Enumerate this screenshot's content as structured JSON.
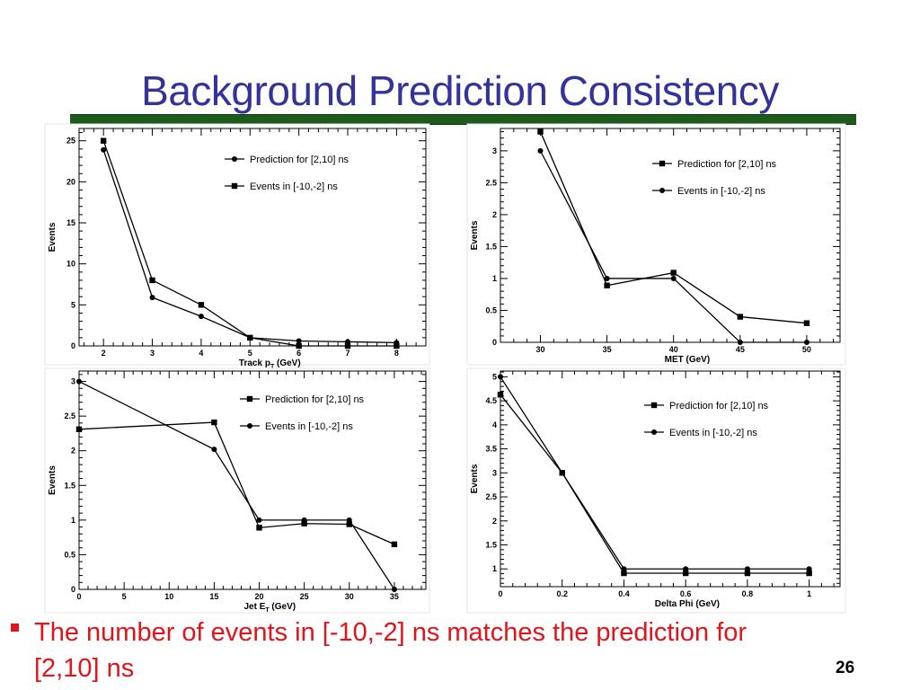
{
  "slide": {
    "title": "Background Prediction Consistency",
    "bullet": "The number of events in [-10,-2] ns matches the prediction for [2,10] ns",
    "page_number": "26",
    "colors": {
      "title": "#333399",
      "bar": "#1e5a1e",
      "bullet": "#e0141b"
    }
  },
  "chart_data": [
    {
      "type": "line",
      "xlabel": "Track p_T (GeV)",
      "ylabel": "Events",
      "xlim": [
        1.5,
        8.6
      ],
      "ylim": [
        0,
        26.5
      ],
      "xticks": [
        2,
        3,
        4,
        5,
        6,
        7,
        8
      ],
      "yticks": [
        0,
        5,
        10,
        15,
        20,
        25
      ],
      "legend_position": "top-right",
      "series": [
        {
          "name": "Prediction for [2,10] ns",
          "marker": "circle",
          "x": [
            2,
            3,
            4,
            5,
            6,
            7,
            8
          ],
          "y": [
            23.9,
            5.9,
            3.6,
            1.0,
            0.6,
            0.5,
            0.4
          ]
        },
        {
          "name": "Events in [-10,-2] ns",
          "marker": "square",
          "x": [
            2,
            3,
            4,
            5,
            6,
            7,
            8
          ],
          "y": [
            25,
            8,
            5,
            1,
            0,
            0,
            0
          ]
        }
      ]
    },
    {
      "type": "line",
      "xlabel": "MET (GeV)",
      "ylabel": "Events",
      "xlim": [
        27,
        52.5
      ],
      "ylim": [
        0,
        3.35
      ],
      "xticks": [
        30,
        35,
        40,
        45,
        50
      ],
      "yticks": [
        0,
        0.5,
        1,
        1.5,
        2,
        2.5,
        3
      ],
      "legend_position": "top-right",
      "series": [
        {
          "name": "Prediction for [2,10] ns",
          "marker": "square",
          "x": [
            30,
            35,
            40,
            45,
            50
          ],
          "y": [
            3.3,
            0.89,
            1.09,
            0.4,
            0.3
          ]
        },
        {
          "name": "Events in [-10,-2] ns",
          "marker": "circle",
          "x": [
            30,
            35,
            40,
            45,
            50
          ],
          "y": [
            3.0,
            1.0,
            1.0,
            0.0,
            0.0
          ]
        }
      ]
    },
    {
      "type": "line",
      "xlabel": "Jet E_T (GeV)",
      "ylabel": "Events",
      "xlim": [
        0,
        38.5
      ],
      "ylim": [
        0,
        3.15
      ],
      "xticks": [
        0,
        5,
        10,
        15,
        20,
        25,
        30,
        35
      ],
      "yticks": [
        0,
        0.5,
        1,
        1.5,
        2,
        2.5,
        3
      ],
      "legend_position": "top-right",
      "series": [
        {
          "name": "Prediction for [2,10] ns",
          "marker": "square",
          "x": [
            0,
            15,
            20,
            25,
            30,
            35
          ],
          "y": [
            2.31,
            2.41,
            0.89,
            0.95,
            0.94,
            0.65
          ]
        },
        {
          "name": "Events in [-10,-2] ns",
          "marker": "circle",
          "x": [
            0,
            15,
            20,
            25,
            30,
            35
          ],
          "y": [
            3.0,
            2.02,
            1.0,
            1.0,
            1.0,
            0.0
          ]
        }
      ]
    },
    {
      "type": "line",
      "xlabel": "Delta Phi (GeV)",
      "ylabel": "Events",
      "xlim": [
        0,
        1.1
      ],
      "ylim": [
        0.63,
        5.12
      ],
      "xticks": [
        0,
        0.2,
        0.4,
        0.6,
        0.8,
        1
      ],
      "yticks": [
        1,
        1.5,
        2,
        2.5,
        3,
        3.5,
        4,
        4.5,
        5
      ],
      "legend_position": "top-right",
      "series": [
        {
          "name": "Prediction for [2,10] ns",
          "marker": "square",
          "x": [
            0,
            0.2,
            0.4,
            0.6,
            0.8,
            1.0
          ],
          "y": [
            4.63,
            3.0,
            0.91,
            0.91,
            0.91,
            0.91
          ]
        },
        {
          "name": "Events in [-10,-2] ns",
          "marker": "circle",
          "x": [
            0,
            0.2,
            0.4,
            0.6,
            0.8,
            1.0
          ],
          "y": [
            5.0,
            3.0,
            1.0,
            1.0,
            1.0,
            1.0
          ]
        }
      ]
    }
  ]
}
